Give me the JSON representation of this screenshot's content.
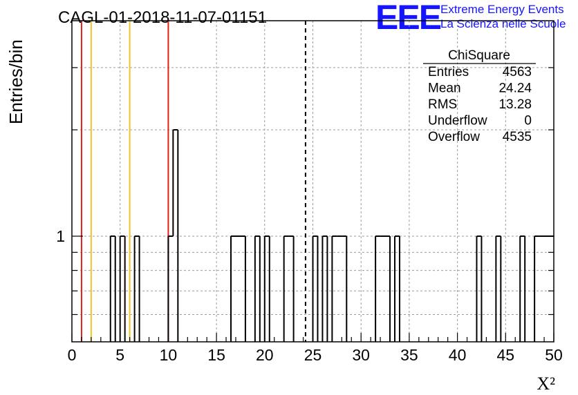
{
  "chart_data": {
    "type": "bar",
    "title": "CAGL-01-2018-11-07-01151",
    "xlabel": "X²",
    "ylabel": "Entries/bin",
    "xlim": [
      0,
      50
    ],
    "y_scale": "log",
    "bin_width": 0.5,
    "x_ticks": [
      0,
      5,
      10,
      15,
      20,
      25,
      30,
      35,
      40,
      45,
      50
    ],
    "y_ticks": [
      1
    ],
    "grid": true,
    "bins": [
      {
        "x": 4.0,
        "y": 1
      },
      {
        "x": 5.0,
        "y": 1
      },
      {
        "x": 6.5,
        "y": 1
      },
      {
        "x": 10.0,
        "y": 1
      },
      {
        "x": 10.5,
        "y": 2
      },
      {
        "x": 16.5,
        "y": 1
      },
      {
        "x": 17.0,
        "y": 1
      },
      {
        "x": 17.5,
        "y": 1
      },
      {
        "x": 19.0,
        "y": 1
      },
      {
        "x": 20.0,
        "y": 1
      },
      {
        "x": 22.0,
        "y": 1
      },
      {
        "x": 22.5,
        "y": 1
      },
      {
        "x": 25.0,
        "y": 1
      },
      {
        "x": 26.0,
        "y": 1
      },
      {
        "x": 27.0,
        "y": 1
      },
      {
        "x": 27.5,
        "y": 1
      },
      {
        "x": 28.0,
        "y": 1
      },
      {
        "x": 31.5,
        "y": 1
      },
      {
        "x": 32.0,
        "y": 1
      },
      {
        "x": 32.5,
        "y": 1
      },
      {
        "x": 33.5,
        "y": 1
      },
      {
        "x": 42.0,
        "y": 1
      },
      {
        "x": 44.0,
        "y": 1
      },
      {
        "x": 46.5,
        "y": 1
      },
      {
        "x": 48.0,
        "y": 1
      },
      {
        "x": 48.5,
        "y": 1
      },
      {
        "x": 49.0,
        "y": 1
      },
      {
        "x": 49.5,
        "y": 1
      }
    ],
    "vertical_lines": [
      {
        "x": 1,
        "color": "#e0201b"
      },
      {
        "x": 2,
        "color": "#f2c42b"
      },
      {
        "x": 6,
        "color": "#f2c42b"
      },
      {
        "x": 10,
        "color": "#e0201b"
      },
      {
        "x": 24.24,
        "color": "#000000",
        "style": "dashed"
      }
    ],
    "stats": {
      "title": "ChiSquare",
      "rows": [
        {
          "label": "Entries",
          "value": "4563"
        },
        {
          "label": "Mean",
          "value": "24.24"
        },
        {
          "label": "RMS",
          "value": "13.28"
        },
        {
          "label": "Underflow",
          "value": "0"
        },
        {
          "label": "Overflow",
          "value": "4535"
        }
      ]
    },
    "logo": {
      "big": "EEE",
      "line1": "Extreme Energy Events",
      "line2": "La Scienza nelle Scuole",
      "color": "#1515ff"
    }
  }
}
